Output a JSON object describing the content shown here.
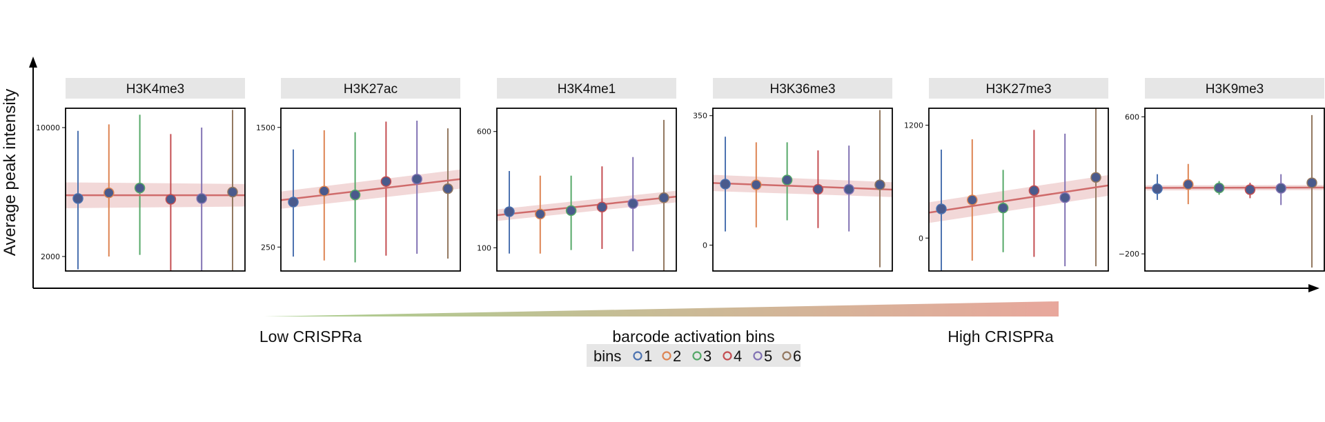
{
  "figure": {
    "y_axis_label": "Average peak intensity",
    "x_axis_label": "barcode activation bins",
    "low_label": "Low CRISPRa",
    "high_label": "High CRISPRa",
    "gradient_colors": [
      "#a9cf8f",
      "#e8a79c"
    ],
    "legend": {
      "title": "bins",
      "items": [
        {
          "label": "1",
          "color": "#4c72b0"
        },
        {
          "label": "2",
          "color": "#dd8452"
        },
        {
          "label": "3",
          "color": "#55a868"
        },
        {
          "label": "4",
          "color": "#c44e52"
        },
        {
          "label": "5",
          "color": "#8172b3"
        },
        {
          "label": "6",
          "color": "#937860"
        }
      ]
    }
  },
  "chart_data": [
    {
      "type": "scatter",
      "title": "H3K4me3",
      "x": [
        1,
        2,
        3,
        4,
        5,
        6
      ],
      "ylim": [
        1100,
        11200
      ],
      "yticks": [
        2000,
        10000
      ],
      "y": [
        5600,
        5950,
        6250,
        5550,
        5600,
        6000
      ],
      "err_low": [
        1200,
        2000,
        2100,
        1100,
        1100,
        400
      ],
      "err_high": [
        9800,
        10200,
        10800,
        9600,
        10000,
        11100
      ],
      "fit": [
        5800,
        5800
      ],
      "ci_width": [
        800,
        700
      ]
    },
    {
      "type": "scatter",
      "title": "H3K27ac",
      "x": [
        1,
        2,
        3,
        4,
        5,
        6
      ],
      "ylim": [
        0,
        1700
      ],
      "yticks": [
        250,
        1500
      ],
      "y": [
        720,
        835,
        795,
        935,
        960,
        860
      ],
      "err_low": [
        150,
        110,
        90,
        160,
        180,
        130
      ],
      "err_high": [
        1270,
        1470,
        1450,
        1560,
        1570,
        1490
      ],
      "fit": [
        740,
        960
      ],
      "ci_width": [
        90,
        100
      ]
    },
    {
      "type": "scatter",
      "title": "H3K4me1",
      "x": [
        1,
        2,
        3,
        4,
        5,
        6
      ],
      "ylim": [
        0,
        700
      ],
      "yticks": [
        100,
        600
      ],
      "y": [
        255,
        245,
        260,
        275,
        290,
        315
      ],
      "err_low": [
        75,
        75,
        90,
        95,
        85,
        0
      ],
      "err_high": [
        430,
        410,
        410,
        450,
        490,
        650
      ],
      "fit": [
        240,
        320
      ],
      "ci_width": [
        25,
        25
      ]
    },
    {
      "type": "scatter",
      "title": "H3K36me3",
      "x": [
        1,
        2,
        3,
        4,
        5,
        6
      ],
      "ylim": [
        -70,
        370
      ],
      "yticks": [
        0,
        350
      ],
      "y": [
        165,
        163,
        176,
        151,
        151,
        163
      ],
      "err_low": [
        37,
        48,
        67,
        46,
        37,
        -60
      ],
      "err_high": [
        293,
        278,
        278,
        256,
        269,
        365
      ],
      "fit": [
        168,
        150
      ],
      "ci_width": [
        22,
        20
      ]
    },
    {
      "type": "scatter",
      "title": "H3K27me3",
      "x": [
        1,
        2,
        3,
        4,
        5,
        6
      ],
      "ylim": [
        -350,
        1380
      ],
      "yticks": [
        0,
        1200
      ],
      "y": [
        310,
        405,
        320,
        505,
        430,
        645
      ],
      "err_low": [
        -350,
        -240,
        -150,
        -200,
        -300,
        -300
      ],
      "err_high": [
        940,
        1050,
        725,
        1150,
        1110,
        1450
      ],
      "fit": [
        270,
        560
      ],
      "ci_width": [
        110,
        110
      ]
    },
    {
      "type": "scatter",
      "title": "H3K9me3",
      "x": [
        1,
        2,
        3,
        4,
        5,
        6
      ],
      "ylim": [
        -300,
        650
      ],
      "yticks": [
        -200,
        600
      ],
      "y": [
        180,
        205,
        185,
        175,
        183,
        215
      ],
      "err_low": [
        115,
        90,
        145,
        125,
        85,
        -280
      ],
      "err_high": [
        265,
        325,
        225,
        215,
        265,
        610
      ],
      "fit": [
        185,
        187
      ],
      "ci_width": [
        15,
        15
      ]
    }
  ]
}
